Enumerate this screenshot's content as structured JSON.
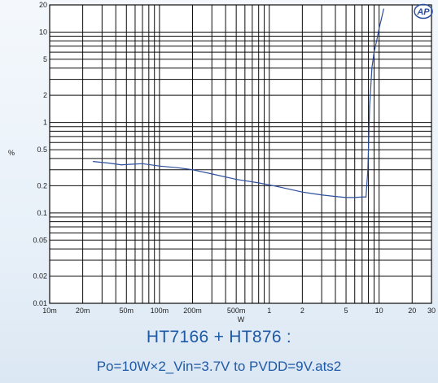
{
  "chart_data": {
    "type": "line",
    "xscale": "log",
    "yscale": "log",
    "xlim": [
      0.01,
      30
    ],
    "ylim": [
      0.01,
      20
    ],
    "xlabel": "W",
    "ylabel": "%",
    "x_ticks": [
      0.01,
      0.02,
      0.05,
      0.1,
      0.2,
      0.5,
      1,
      2,
      5,
      10,
      20,
      30
    ],
    "x_tick_labels": [
      "10m",
      "20m",
      "50m",
      "100m",
      "200m",
      "500m",
      "1",
      "2",
      "5",
      "10",
      "20",
      "30"
    ],
    "y_ticks": [
      0.01,
      0.02,
      0.05,
      0.1,
      0.2,
      0.5,
      1,
      2,
      5,
      10,
      20
    ],
    "y_tick_labels": [
      "0.01",
      "0.02",
      "0.05",
      "0.1",
      "0.2",
      "0.5",
      "1",
      "2",
      "5",
      "10",
      "20"
    ],
    "grid": true,
    "series": [
      {
        "color": "#2d4f9e",
        "x": [
          0.025,
          0.035,
          0.045,
          0.055,
          0.07,
          0.1,
          0.15,
          0.2,
          0.3,
          0.5,
          0.8,
          1.2,
          2,
          3,
          4,
          5,
          6,
          7,
          7.6,
          7.9,
          8.2,
          8.6,
          9.0,
          9.5,
          10,
          10.5,
          11
        ],
        "y": [
          0.37,
          0.355,
          0.34,
          0.345,
          0.35,
          0.33,
          0.315,
          0.3,
          0.27,
          0.235,
          0.215,
          0.195,
          0.17,
          0.158,
          0.152,
          0.148,
          0.148,
          0.15,
          0.15,
          0.3,
          1.5,
          4,
          6,
          8,
          11,
          14,
          18
        ]
      }
    ]
  },
  "captions": {
    "line1": "HT7166 + HT876 :",
    "line2": "Po=10W×2_Vin=3.7V to PVDD=9V.ats2"
  },
  "logo_text": "AP",
  "colors": {
    "grid": "#0d0d0d",
    "curve": "#2d4f9e",
    "caption": "#1f5aa6",
    "plot_bg": "#ffffff"
  }
}
